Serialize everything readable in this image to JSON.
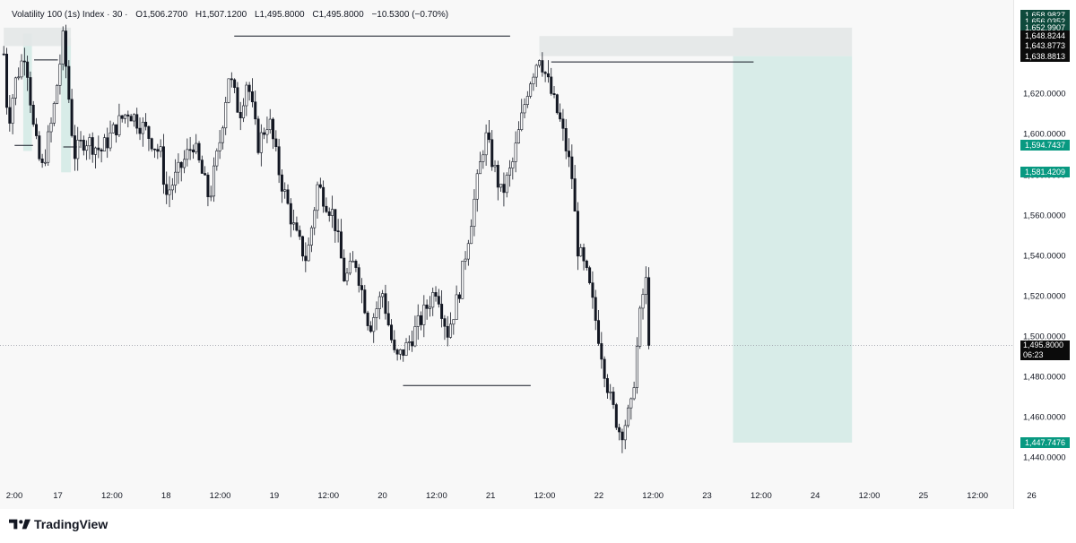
{
  "legend": {
    "symbol": "Volatility 100 (1s) Index · 30 ·",
    "open": "O1,506.2700",
    "high": "H1,507.1200",
    "low": "L1,495.8000",
    "close": "C1,495.8000",
    "change": "−10.5300 (−0.70%)"
  },
  "footer": {
    "brand": "TradingView"
  },
  "colors": {
    "candle": "#131722",
    "target_zone": "#d6ebe7",
    "stop_zone": "#e3e7e7",
    "accent_green": "#089981"
  },
  "chart_data": {
    "type": "candlestick",
    "y_range": [
      1430,
      1664
    ],
    "y_ticks": [
      "1,440.0000",
      "1,460.0000",
      "1,480.0000",
      "1,500.0000",
      "1,520.0000",
      "1,540.0000",
      "1,560.0000",
      "1,580.0000",
      "1,600.0000",
      "1,620.0000"
    ],
    "y_tick_values": [
      1440,
      1460,
      1480,
      1500,
      1520,
      1540,
      1560,
      1580,
      1600,
      1620
    ],
    "x_range": [
      -0.035,
      9.33
    ],
    "x_ticks": [
      {
        "label": "2:00",
        "day": 0
      },
      {
        "label": "17",
        "day": 0.5
      },
      {
        "label": "12:00",
        "day": 1
      },
      {
        "label": "18",
        "day": 1.5
      },
      {
        "label": "12:00",
        "day": 2
      },
      {
        "label": "19",
        "day": 2.5
      },
      {
        "label": "12:00",
        "day": 3
      },
      {
        "label": "20",
        "day": 3.5
      },
      {
        "label": "12:00",
        "day": 4
      },
      {
        "label": "21",
        "day": 4.5
      },
      {
        "label": "12:00",
        "day": 5
      },
      {
        "label": "22",
        "day": 5.5
      },
      {
        "label": "12:00",
        "day": 6
      },
      {
        "label": "23",
        "day": 6.5
      },
      {
        "label": "12:00",
        "day": 7
      },
      {
        "label": "24",
        "day": 7.5
      },
      {
        "label": "12:00",
        "day": 8
      },
      {
        "label": "25",
        "day": 8.5
      },
      {
        "label": "12:00",
        "day": 9
      },
      {
        "label": "26",
        "day": 9.5
      }
    ],
    "current_price": 1495.8,
    "countdown": "06:23",
    "price_badges": [
      {
        "label": "1,658.9827",
        "value": 1658.9827,
        "style": "green-dark"
      },
      {
        "label": "1,656.0352",
        "value": 1656.0352,
        "style": "green-dark"
      },
      {
        "label": "1,652.9907",
        "value": 1652.9907,
        "style": "green-dark"
      },
      {
        "label": "1,648.8244",
        "value": 1648.8244,
        "style": "dark"
      },
      {
        "label": "1,643.8773",
        "value": 1643.8773,
        "style": "dark"
      },
      {
        "label": "1,638.8813",
        "value": 1638.8813,
        "style": "dark"
      },
      {
        "label": "1,594.7437",
        "value": 1594.7437,
        "style": "teal"
      },
      {
        "label": "1,581.4209",
        "value": 1581.4209,
        "style": "teal"
      },
      {
        "label": "1,447.7476",
        "value": 1447.7476,
        "style": "teal"
      }
    ],
    "price_path": [
      {
        "day": 0.0,
        "price": 1640
      },
      {
        "day": 0.04,
        "price": 1605
      },
      {
        "day": 0.1,
        "price": 1625
      },
      {
        "day": 0.2,
        "price": 1642
      },
      {
        "day": 0.28,
        "price": 1600
      },
      {
        "day": 0.35,
        "price": 1582
      },
      {
        "day": 0.45,
        "price": 1608
      },
      {
        "day": 0.55,
        "price": 1648
      },
      {
        "day": 0.65,
        "price": 1590
      },
      {
        "day": 0.75,
        "price": 1598
      },
      {
        "day": 0.9,
        "price": 1592
      },
      {
        "day": 1.05,
        "price": 1605
      },
      {
        "day": 1.15,
        "price": 1612
      },
      {
        "day": 1.3,
        "price": 1603
      },
      {
        "day": 1.45,
        "price": 1590
      },
      {
        "day": 1.5,
        "price": 1570
      },
      {
        "day": 1.6,
        "price": 1580
      },
      {
        "day": 1.75,
        "price": 1596
      },
      {
        "day": 1.9,
        "price": 1568
      },
      {
        "day": 2.0,
        "price": 1598
      },
      {
        "day": 2.08,
        "price": 1630
      },
      {
        "day": 2.18,
        "price": 1610
      },
      {
        "day": 2.25,
        "price": 1628
      },
      {
        "day": 2.35,
        "price": 1595
      },
      {
        "day": 2.45,
        "price": 1608
      },
      {
        "day": 2.55,
        "price": 1580
      },
      {
        "day": 2.7,
        "price": 1550
      },
      {
        "day": 2.8,
        "price": 1538
      },
      {
        "day": 2.9,
        "price": 1575
      },
      {
        "day": 3.05,
        "price": 1560
      },
      {
        "day": 3.15,
        "price": 1528
      },
      {
        "day": 3.25,
        "price": 1538
      },
      {
        "day": 3.38,
        "price": 1505
      },
      {
        "day": 3.5,
        "price": 1522
      },
      {
        "day": 3.62,
        "price": 1488
      },
      {
        "day": 3.72,
        "price": 1495
      },
      {
        "day": 3.85,
        "price": 1508
      },
      {
        "day": 4.0,
        "price": 1525
      },
      {
        "day": 4.1,
        "price": 1502
      },
      {
        "day": 4.2,
        "price": 1520
      },
      {
        "day": 4.35,
        "price": 1568
      },
      {
        "day": 4.45,
        "price": 1600
      },
      {
        "day": 4.6,
        "price": 1570
      },
      {
        "day": 4.7,
        "price": 1585
      },
      {
        "day": 4.85,
        "price": 1625
      },
      {
        "day": 4.95,
        "price": 1640
      },
      {
        "day": 5.05,
        "price": 1622
      },
      {
        "day": 5.15,
        "price": 1605
      },
      {
        "day": 5.25,
        "price": 1580
      },
      {
        "day": 5.3,
        "price": 1545
      },
      {
        "day": 5.4,
        "price": 1528
      },
      {
        "day": 5.5,
        "price": 1500
      },
      {
        "day": 5.6,
        "price": 1470
      },
      {
        "day": 5.7,
        "price": 1452
      },
      {
        "day": 5.8,
        "price": 1465
      },
      {
        "day": 5.88,
        "price": 1510
      },
      {
        "day": 5.93,
        "price": 1530
      },
      {
        "day": 5.98,
        "price": 1495.8
      }
    ],
    "zones": [
      {
        "kind": "target",
        "start_day": 6.74,
        "end_day": 7.84,
        "top": 1638.8813,
        "bottom": 1447.7476
      },
      {
        "kind": "stop",
        "start_day": 6.74,
        "end_day": 7.84,
        "top": 1652.9907,
        "bottom": 1638.8813
      },
      {
        "kind": "stop",
        "start_day": 4.95,
        "end_day": 6.74,
        "top": 1648.8244,
        "bottom": 1638.8813
      },
      {
        "kind": "target",
        "start_day": 0.18,
        "end_day": 0.26,
        "top": 1650,
        "bottom": 1592
      },
      {
        "kind": "target",
        "start_day": 0.53,
        "end_day": 0.62,
        "top": 1648,
        "bottom": 1581.4209
      },
      {
        "kind": "stop",
        "start_day": 0.0,
        "end_day": 0.62,
        "top": 1652.9907,
        "bottom": 1643.8773
      }
    ],
    "levels": [
      {
        "start_day": 2.13,
        "end_day": 4.68,
        "price": 1648.8244
      },
      {
        "start_day": 5.06,
        "end_day": 6.93,
        "price": 1636
      },
      {
        "start_day": 3.69,
        "end_day": 4.87,
        "price": 1476
      },
      {
        "start_day": 0.28,
        "end_day": 0.5,
        "price": 1637
      },
      {
        "start_day": 0.1,
        "end_day": 0.27,
        "price": 1594.7437
      },
      {
        "start_day": 0.55,
        "end_day": 0.7,
        "price": 1594
      }
    ]
  }
}
